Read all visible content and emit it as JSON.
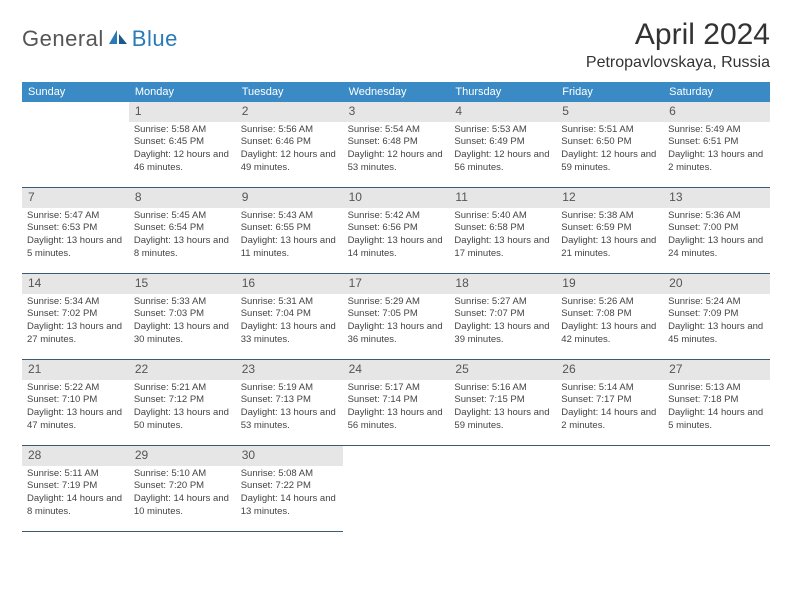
{
  "logo": {
    "general": "General",
    "blue": "Blue"
  },
  "title": "April 2024",
  "location": "Petropavlovskaya, Russia",
  "colors": {
    "header_bg": "#3a8ac5",
    "header_text": "#ffffff",
    "daynum_bg": "#e6e6e6",
    "cell_border": "#3a5a78",
    "logo_blue": "#2a7ab8"
  },
  "day_names": [
    "Sunday",
    "Monday",
    "Tuesday",
    "Wednesday",
    "Thursday",
    "Friday",
    "Saturday"
  ],
  "weeks": [
    [
      {
        "n": "",
        "sr": "",
        "ss": "",
        "dl": ""
      },
      {
        "n": "1",
        "sr": "Sunrise: 5:58 AM",
        "ss": "Sunset: 6:45 PM",
        "dl": "Daylight: 12 hours and 46 minutes."
      },
      {
        "n": "2",
        "sr": "Sunrise: 5:56 AM",
        "ss": "Sunset: 6:46 PM",
        "dl": "Daylight: 12 hours and 49 minutes."
      },
      {
        "n": "3",
        "sr": "Sunrise: 5:54 AM",
        "ss": "Sunset: 6:48 PM",
        "dl": "Daylight: 12 hours and 53 minutes."
      },
      {
        "n": "4",
        "sr": "Sunrise: 5:53 AM",
        "ss": "Sunset: 6:49 PM",
        "dl": "Daylight: 12 hours and 56 minutes."
      },
      {
        "n": "5",
        "sr": "Sunrise: 5:51 AM",
        "ss": "Sunset: 6:50 PM",
        "dl": "Daylight: 12 hours and 59 minutes."
      },
      {
        "n": "6",
        "sr": "Sunrise: 5:49 AM",
        "ss": "Sunset: 6:51 PM",
        "dl": "Daylight: 13 hours and 2 minutes."
      }
    ],
    [
      {
        "n": "7",
        "sr": "Sunrise: 5:47 AM",
        "ss": "Sunset: 6:53 PM",
        "dl": "Daylight: 13 hours and 5 minutes."
      },
      {
        "n": "8",
        "sr": "Sunrise: 5:45 AM",
        "ss": "Sunset: 6:54 PM",
        "dl": "Daylight: 13 hours and 8 minutes."
      },
      {
        "n": "9",
        "sr": "Sunrise: 5:43 AM",
        "ss": "Sunset: 6:55 PM",
        "dl": "Daylight: 13 hours and 11 minutes."
      },
      {
        "n": "10",
        "sr": "Sunrise: 5:42 AM",
        "ss": "Sunset: 6:56 PM",
        "dl": "Daylight: 13 hours and 14 minutes."
      },
      {
        "n": "11",
        "sr": "Sunrise: 5:40 AM",
        "ss": "Sunset: 6:58 PM",
        "dl": "Daylight: 13 hours and 17 minutes."
      },
      {
        "n": "12",
        "sr": "Sunrise: 5:38 AM",
        "ss": "Sunset: 6:59 PM",
        "dl": "Daylight: 13 hours and 21 minutes."
      },
      {
        "n": "13",
        "sr": "Sunrise: 5:36 AM",
        "ss": "Sunset: 7:00 PM",
        "dl": "Daylight: 13 hours and 24 minutes."
      }
    ],
    [
      {
        "n": "14",
        "sr": "Sunrise: 5:34 AM",
        "ss": "Sunset: 7:02 PM",
        "dl": "Daylight: 13 hours and 27 minutes."
      },
      {
        "n": "15",
        "sr": "Sunrise: 5:33 AM",
        "ss": "Sunset: 7:03 PM",
        "dl": "Daylight: 13 hours and 30 minutes."
      },
      {
        "n": "16",
        "sr": "Sunrise: 5:31 AM",
        "ss": "Sunset: 7:04 PM",
        "dl": "Daylight: 13 hours and 33 minutes."
      },
      {
        "n": "17",
        "sr": "Sunrise: 5:29 AM",
        "ss": "Sunset: 7:05 PM",
        "dl": "Daylight: 13 hours and 36 minutes."
      },
      {
        "n": "18",
        "sr": "Sunrise: 5:27 AM",
        "ss": "Sunset: 7:07 PM",
        "dl": "Daylight: 13 hours and 39 minutes."
      },
      {
        "n": "19",
        "sr": "Sunrise: 5:26 AM",
        "ss": "Sunset: 7:08 PM",
        "dl": "Daylight: 13 hours and 42 minutes."
      },
      {
        "n": "20",
        "sr": "Sunrise: 5:24 AM",
        "ss": "Sunset: 7:09 PM",
        "dl": "Daylight: 13 hours and 45 minutes."
      }
    ],
    [
      {
        "n": "21",
        "sr": "Sunrise: 5:22 AM",
        "ss": "Sunset: 7:10 PM",
        "dl": "Daylight: 13 hours and 47 minutes."
      },
      {
        "n": "22",
        "sr": "Sunrise: 5:21 AM",
        "ss": "Sunset: 7:12 PM",
        "dl": "Daylight: 13 hours and 50 minutes."
      },
      {
        "n": "23",
        "sr": "Sunrise: 5:19 AM",
        "ss": "Sunset: 7:13 PM",
        "dl": "Daylight: 13 hours and 53 minutes."
      },
      {
        "n": "24",
        "sr": "Sunrise: 5:17 AM",
        "ss": "Sunset: 7:14 PM",
        "dl": "Daylight: 13 hours and 56 minutes."
      },
      {
        "n": "25",
        "sr": "Sunrise: 5:16 AM",
        "ss": "Sunset: 7:15 PM",
        "dl": "Daylight: 13 hours and 59 minutes."
      },
      {
        "n": "26",
        "sr": "Sunrise: 5:14 AM",
        "ss": "Sunset: 7:17 PM",
        "dl": "Daylight: 14 hours and 2 minutes."
      },
      {
        "n": "27",
        "sr": "Sunrise: 5:13 AM",
        "ss": "Sunset: 7:18 PM",
        "dl": "Daylight: 14 hours and 5 minutes."
      }
    ],
    [
      {
        "n": "28",
        "sr": "Sunrise: 5:11 AM",
        "ss": "Sunset: 7:19 PM",
        "dl": "Daylight: 14 hours and 8 minutes."
      },
      {
        "n": "29",
        "sr": "Sunrise: 5:10 AM",
        "ss": "Sunset: 7:20 PM",
        "dl": "Daylight: 14 hours and 10 minutes."
      },
      {
        "n": "30",
        "sr": "Sunrise: 5:08 AM",
        "ss": "Sunset: 7:22 PM",
        "dl": "Daylight: 14 hours and 13 minutes."
      },
      {
        "n": "",
        "sr": "",
        "ss": "",
        "dl": ""
      },
      {
        "n": "",
        "sr": "",
        "ss": "",
        "dl": ""
      },
      {
        "n": "",
        "sr": "",
        "ss": "",
        "dl": ""
      },
      {
        "n": "",
        "sr": "",
        "ss": "",
        "dl": ""
      }
    ]
  ]
}
